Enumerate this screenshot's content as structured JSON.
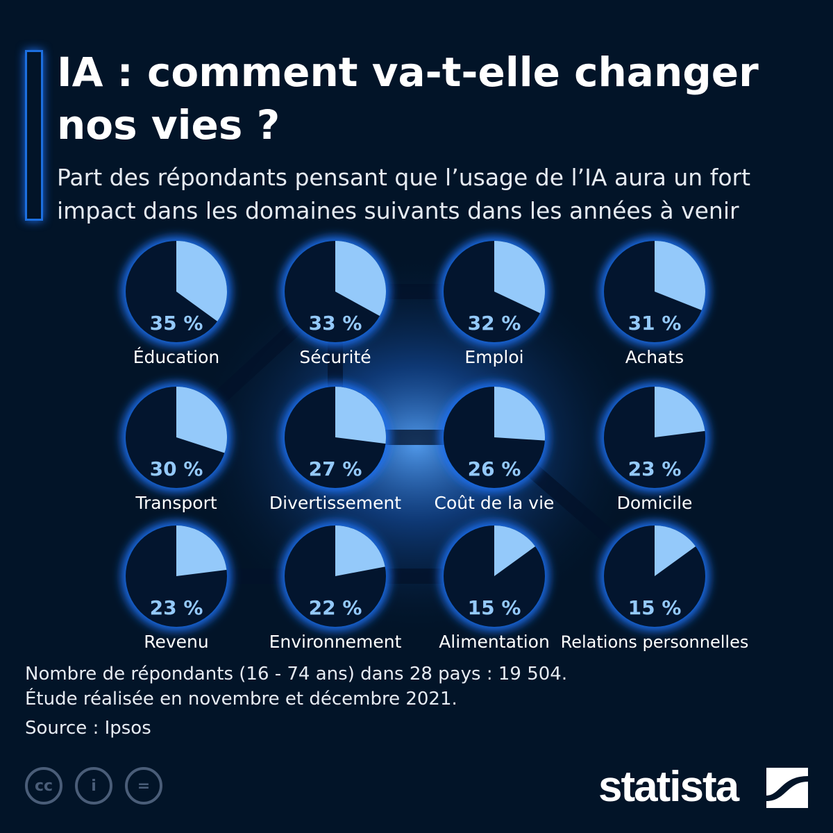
{
  "title": "IA : comment va-t-elle changer nos vies ?",
  "subtitle": "Part des répondants pensant que l’usage de l’IA aura un fort impact dans les domaines suivants dans les années à venir",
  "chart_data": {
    "type": "pie",
    "title": "IA : comment va-t-elle changer nos vies ?",
    "categories": [
      "Éducation",
      "Sécurité",
      "Emploi",
      "Achats",
      "Transport",
      "Divertissement",
      "Coût de la vie",
      "Domicile",
      "Revenu",
      "Environnement",
      "Alimentation",
      "Relations personnelles"
    ],
    "values": [
      35,
      33,
      32,
      31,
      30,
      27,
      26,
      23,
      23,
      22,
      15,
      15
    ],
    "labels": [
      "35 %",
      "33 %",
      "32 %",
      "31 %",
      "30 %",
      "27 %",
      "26 %",
      "23 %",
      "23 %",
      "22 %",
      "15 %",
      "15 %"
    ],
    "unit": "%",
    "colors": {
      "slice": "#94c9fa",
      "remainder": "#03152e",
      "glow": "#1d6ff0",
      "background": "#021428"
    }
  },
  "notes": {
    "respondents": "Nombre de répondants (16 - 74 ans) dans 28 pays : 19 504.",
    "study": "Étude réalisée en novembre et décembre 2021.",
    "source": "Source : Ipsos"
  },
  "brand": "statista",
  "license_icons": [
    "cc-icon",
    "attribution-icon",
    "no-derivatives-icon"
  ]
}
